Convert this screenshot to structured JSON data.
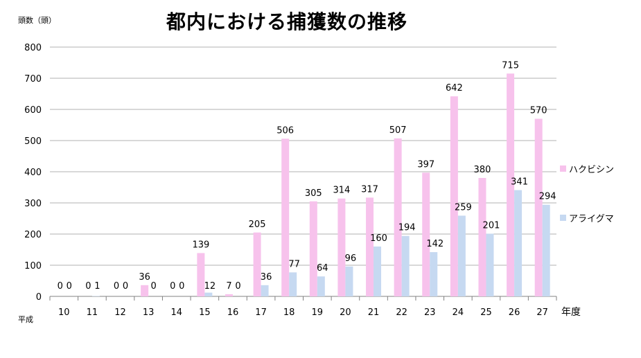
{
  "chart_data": {
    "type": "bar",
    "title": "都内における捕獲数の推移",
    "ylabel": "頭数（頭）",
    "xlabel": "年度",
    "era_label": "平成",
    "categories": [
      "10",
      "11",
      "12",
      "13",
      "14",
      "15",
      "16",
      "17",
      "18",
      "19",
      "20",
      "21",
      "22",
      "23",
      "24",
      "25",
      "26",
      "27"
    ],
    "series": [
      {
        "name": "ハクビシン",
        "color": "#f7c2ec",
        "values": [
          0,
          0,
          0,
          36,
          0,
          139,
          7,
          205,
          506,
          305,
          314,
          317,
          507,
          397,
          642,
          380,
          715,
          570
        ]
      },
      {
        "name": "アライグマ",
        "color": "#c6d9f1",
        "values": [
          0,
          1,
          0,
          0,
          0,
          12,
          0,
          36,
          77,
          64,
          96,
          160,
          194,
          142,
          259,
          201,
          341,
          294
        ]
      }
    ],
    "ylim": [
      0,
      800
    ],
    "yticks": [
      0,
      100,
      200,
      300,
      400,
      500,
      600,
      700,
      800
    ],
    "grid": true,
    "legend_position": "right"
  }
}
